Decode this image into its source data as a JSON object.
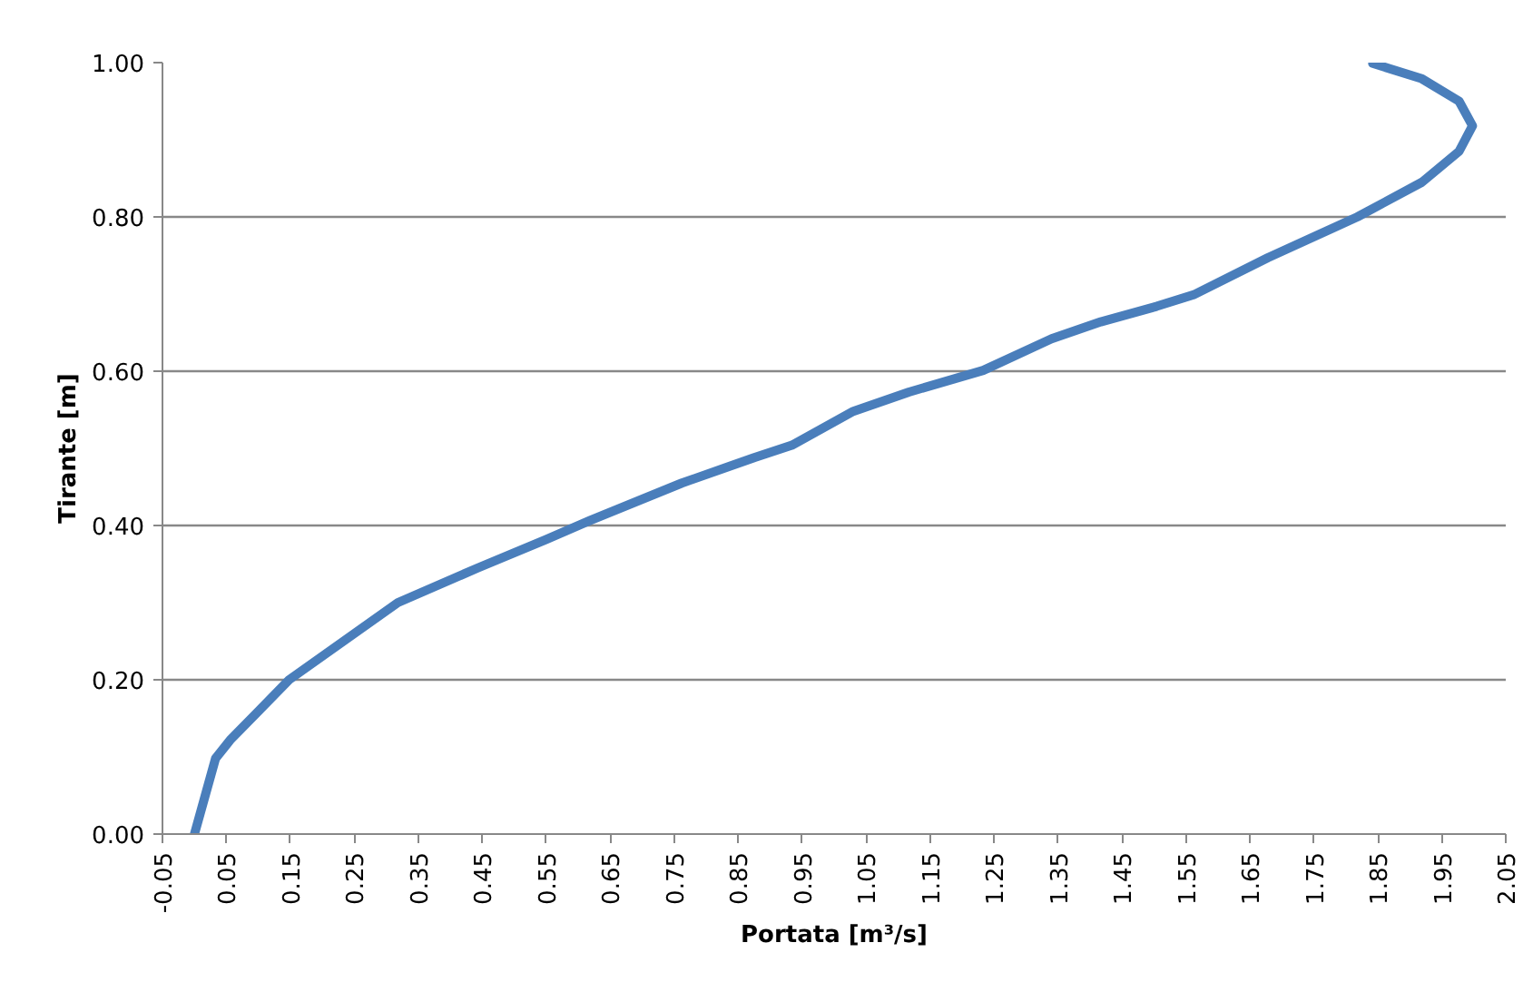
{
  "chart_data": {
    "type": "line",
    "xlabel": "Portata [m³/s]",
    "ylabel": "Tirante [m]",
    "x": [
      0.0,
      0.033,
      0.057,
      0.095,
      0.148,
      0.25,
      0.318,
      0.443,
      0.55,
      0.617,
      0.762,
      0.875,
      0.934,
      1.03,
      1.117,
      1.233,
      1.34,
      1.417,
      1.504,
      1.562,
      1.678,
      1.818,
      1.919,
      1.977,
      1.998,
      1.977,
      1.919,
      1.842
    ],
    "series": [
      {
        "color": "#4a7ebb",
        "values": [
          0.0,
          0.098,
          0.123,
          0.155,
          0.2,
          0.26,
          0.3,
          0.345,
          0.382,
          0.406,
          0.455,
          0.488,
          0.504,
          0.548,
          0.573,
          0.601,
          0.642,
          0.664,
          0.684,
          0.699,
          0.747,
          0.8,
          0.845,
          0.885,
          0.918,
          0.95,
          0.979,
          0.999
        ]
      }
    ],
    "xlim": [
      -0.05,
      2.05
    ],
    "xticks": [
      -0.05,
      0.05,
      0.15,
      0.25,
      0.35,
      0.45,
      0.55,
      0.65,
      0.75,
      0.85,
      0.95,
      1.05,
      1.15,
      1.25,
      1.35,
      1.45,
      1.55,
      1.65,
      1.75,
      1.85,
      1.95,
      2.05
    ],
    "ylim": [
      0,
      1
    ],
    "yticks": [
      {
        "value": 0,
        "label": "0.00"
      },
      {
        "value": 0.2,
        "label": "0.20"
      },
      {
        "value": 0.4,
        "label": "0.40"
      },
      {
        "value": 0.6,
        "label": "0.60"
      },
      {
        "value": 0.8,
        "label": "0.80"
      },
      {
        "value": 1,
        "label": "1.00"
      }
    ],
    "grid": "y",
    "marker": "none",
    "line_style": "solid"
  }
}
